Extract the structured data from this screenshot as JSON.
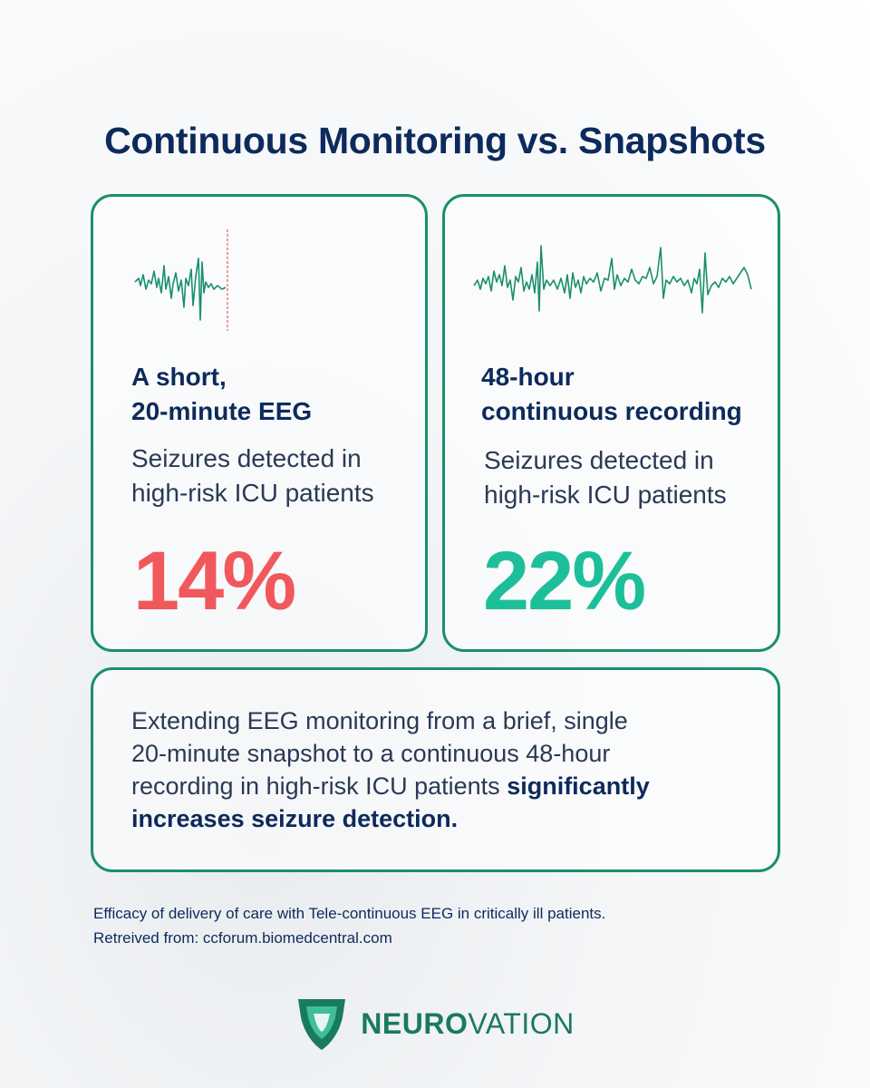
{
  "title": "Continuous Monitoring vs. Snapshots",
  "cards": [
    {
      "heading_line1": "A short,",
      "heading_line2": "20-minute EEG",
      "desc_line1": "Seizures detected in",
      "desc_line2": "high-risk ICU patients",
      "stat": "14%",
      "stat_color": "#f0585c"
    },
    {
      "heading_line1": "48-hour",
      "heading_line2": "continuous recording",
      "desc_line1": "Seizures detected in",
      "desc_line2": "high-risk ICU patients",
      "stat": "22%",
      "stat_color": "#1dbf9a"
    }
  ],
  "summary": {
    "line1": "Extending EEG monitoring from a brief, single",
    "line2": "20-minute snapshot to a continuous 48-hour",
    "line3_plain": "recording in high-risk ICU patients ",
    "line3_bold": "significantly",
    "line4_bold": "increases seizure detection."
  },
  "source": {
    "line1": "Efficacy of delivery of care with Tele-continuous EEG in critically ill patients.",
    "line2": "Retreived from: ccforum.biomedcentral.com"
  },
  "logo": {
    "brand_bold": "NEURO",
    "brand_thin": "VATION",
    "icon": "shield-logo-icon"
  },
  "colors": {
    "accent": "#1a8f6c",
    "navy": "#0d2a5c",
    "red": "#f0585c",
    "green": "#1dbf9a"
  }
}
